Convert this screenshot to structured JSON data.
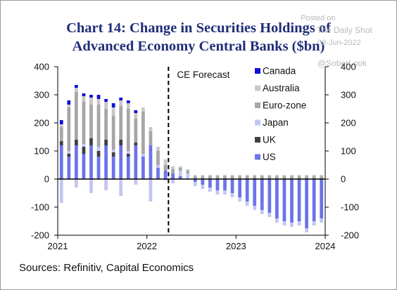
{
  "chart_data": {
    "type": "bar",
    "title_line1": "Chart 14: Change in Securities Holdings of",
    "title_line2": "Advanced Economy Central Banks ($bn)",
    "annotation": "CE Forecast",
    "source": "Sources: Refinitiv, Capital Economics",
    "ylim": [
      -200,
      400
    ],
    "y_ticks": [
      "400",
      "300",
      "200",
      "100",
      "0",
      "-100",
      "-200"
    ],
    "x_ticks": [
      "2021",
      "2022",
      "2023",
      "2024"
    ],
    "x_domain": [
      "2021-01",
      "2024-01"
    ],
    "forecast_start": "2022-04",
    "legend_placement": "top-right",
    "colors": {
      "Canada": "#1010d8",
      "Australia": "#c8c8c8",
      "Euro-zone": "#a6a6a6",
      "Japan": "#c3c6f2",
      "UK": "#404040",
      "US": "#6b74e8"
    },
    "series_order": [
      "US",
      "UK",
      "Japan",
      "Euro-zone",
      "Australia",
      "Canada"
    ],
    "legend": [
      "Canada",
      "Australia",
      "Euro-zone",
      "Japan",
      "UK",
      "US"
    ],
    "months": [
      "2021-01",
      "2021-02",
      "2021-03",
      "2021-04",
      "2021-05",
      "2021-06",
      "2021-07",
      "2021-08",
      "2021-09",
      "2021-10",
      "2021-11",
      "2021-12",
      "2022-01",
      "2022-02",
      "2022-03",
      "2022-04",
      "2022-05",
      "2022-06",
      "2022-07",
      "2022-08",
      "2022-09",
      "2022-10",
      "2022-11",
      "2022-12",
      "2023-01",
      "2023-02",
      "2023-03",
      "2023-04",
      "2023-05",
      "2023-06",
      "2023-07",
      "2023-08",
      "2023-09",
      "2023-10",
      "2023-11",
      "2023-12"
    ],
    "series": [
      {
        "name": "US",
        "values": [
          120,
          80,
          120,
          90,
          120,
          80,
          120,
          80,
          120,
          80,
          120,
          80,
          120,
          40,
          30,
          20,
          10,
          0,
          -10,
          -20,
          -30,
          -40,
          -40,
          -50,
          -65,
          -80,
          -95,
          -110,
          -120,
          -140,
          -150,
          -155,
          -150,
          -175,
          -150,
          -140
        ]
      },
      {
        "name": "UK",
        "values": [
          15,
          10,
          20,
          25,
          25,
          20,
          20,
          15,
          20,
          10,
          10,
          0,
          0,
          0,
          0,
          0,
          0,
          0,
          0,
          0,
          0,
          0,
          0,
          0,
          0,
          0,
          0,
          0,
          0,
          0,
          0,
          0,
          0,
          0,
          0,
          0
        ]
      },
      {
        "name": "Japan",
        "values": [
          -85,
          10,
          -30,
          10,
          -50,
          15,
          -40,
          10,
          -60,
          10,
          -20,
          10,
          -80,
          10,
          -5,
          -15,
          20,
          20,
          -15,
          -15,
          -15,
          -15,
          -15,
          -15,
          -15,
          -15,
          -15,
          -15,
          -15,
          -15,
          -15,
          -15,
          -15,
          -15,
          -15,
          -15
        ]
      },
      {
        "name": "Euro-zone",
        "values": [
          50,
          155,
          170,
          150,
          120,
          150,
          110,
          120,
          120,
          150,
          85,
          150,
          50,
          50,
          20,
          15,
          10,
          10,
          10,
          10,
          10,
          10,
          10,
          10,
          10,
          10,
          10,
          10,
          10,
          10,
          10,
          10,
          10,
          10,
          10,
          10
        ]
      },
      {
        "name": "Australia",
        "values": [
          10,
          10,
          15,
          20,
          25,
          20,
          25,
          30,
          20,
          20,
          20,
          15,
          15,
          15,
          20,
          10,
          5,
          5,
          5,
          5,
          5,
          5,
          5,
          5,
          5,
          5,
          5,
          5,
          5,
          5,
          5,
          5,
          5,
          5,
          5,
          5
        ]
      },
      {
        "name": "Canada",
        "values": [
          15,
          15,
          10,
          10,
          10,
          15,
          10,
          15,
          10,
          10,
          10,
          0,
          0,
          0,
          0,
          0,
          0,
          0,
          0,
          0,
          0,
          0,
          0,
          0,
          0,
          0,
          0,
          0,
          0,
          0,
          0,
          0,
          0,
          0,
          0,
          0
        ]
      }
    ]
  },
  "watermark": {
    "posted_on": "Posted on",
    "brand": "The Daily Shot",
    "date": "03-Jun-2022",
    "handle": "@SoberLook"
  }
}
